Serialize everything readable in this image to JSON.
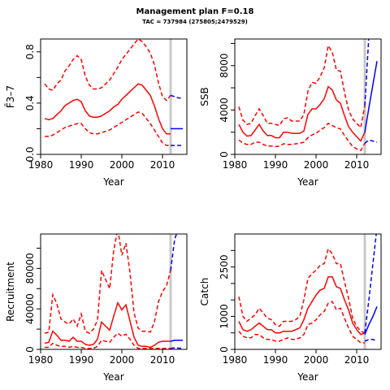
{
  "title": "Management plan F=0.18",
  "subtitle": "TAC = 737984 (275805;2479529)",
  "colors": {
    "historical": "#ff0000",
    "projection": "#0000ff",
    "marker": "#c8c8c8"
  },
  "chart_data": [
    {
      "type": "line",
      "id": "f",
      "ylabel": "F̄3–7",
      "xlabel": "Year",
      "xlim": [
        1980,
        2016
      ],
      "ylim": [
        0,
        0.9
      ],
      "xticks": [
        1980,
        1990,
        2000,
        2010
      ],
      "yticks": [
        0.0,
        0.4,
        0.8
      ],
      "yticks_minor": [
        0.2,
        0.6
      ],
      "marker_year": 2012,
      "history": {
        "x": [
          1981,
          1982,
          1983,
          1984,
          1985,
          1986,
          1987,
          1988,
          1989,
          1990,
          1991,
          1992,
          1993,
          1994,
          1995,
          1996,
          1997,
          1998,
          1999,
          2000,
          2001,
          2002,
          2003,
          2004,
          2005,
          2006,
          2007,
          2008,
          2009,
          2010,
          2011,
          2012
        ],
        "median": [
          0.28,
          0.27,
          0.28,
          0.31,
          0.34,
          0.38,
          0.4,
          0.42,
          0.43,
          0.41,
          0.34,
          0.3,
          0.29,
          0.29,
          0.3,
          0.32,
          0.34,
          0.37,
          0.39,
          0.43,
          0.46,
          0.49,
          0.52,
          0.55,
          0.54,
          0.5,
          0.46,
          0.38,
          0.28,
          0.2,
          0.16,
          0.16
        ],
        "upper": [
          0.55,
          0.51,
          0.5,
          0.55,
          0.58,
          0.65,
          0.69,
          0.74,
          0.77,
          0.74,
          0.61,
          0.54,
          0.51,
          0.51,
          0.52,
          0.55,
          0.58,
          0.63,
          0.68,
          0.74,
          0.78,
          0.82,
          0.86,
          0.9,
          0.88,
          0.84,
          0.79,
          0.7,
          0.56,
          0.45,
          0.42,
          0.46
        ],
        "lower": [
          0.14,
          0.14,
          0.15,
          0.17,
          0.19,
          0.21,
          0.22,
          0.23,
          0.24,
          0.24,
          0.2,
          0.17,
          0.16,
          0.16,
          0.17,
          0.18,
          0.19,
          0.21,
          0.23,
          0.25,
          0.27,
          0.29,
          0.31,
          0.33,
          0.32,
          0.28,
          0.24,
          0.19,
          0.14,
          0.09,
          0.07,
          0.07
        ]
      },
      "projection": {
        "x": [
          2012,
          2013,
          2014,
          2015
        ],
        "median": [
          0.2,
          0.2,
          0.2,
          0.2
        ],
        "upper": [
          0.46,
          0.45,
          0.44,
          0.44
        ],
        "lower": [
          0.07,
          0.07,
          0.07,
          0.07
        ]
      }
    },
    {
      "type": "line",
      "id": "ssb",
      "ylabel": "SSB",
      "xlabel": "Year",
      "xlim": [
        1980,
        2016
      ],
      "ylim": [
        0,
        10400
      ],
      "xticks": [
        1980,
        1990,
        2000,
        2010
      ],
      "yticks": [
        0,
        4000,
        8000
      ],
      "yticks_minor": [
        2000,
        6000,
        10000
      ],
      "marker_year": 2012,
      "history": {
        "x": [
          1981,
          1982,
          1983,
          1984,
          1985,
          1986,
          1987,
          1988,
          1989,
          1990,
          1991,
          1992,
          1993,
          1994,
          1995,
          1996,
          1997,
          1998,
          1999,
          2000,
          2001,
          2002,
          2003,
          2004,
          2005,
          2006,
          2007,
          2008,
          2009,
          2010,
          2011,
          2012
        ],
        "median": [
          2700,
          2000,
          1650,
          1700,
          2200,
          2700,
          2100,
          1700,
          1700,
          1500,
          1500,
          2000,
          2000,
          1900,
          1900,
          1900,
          2100,
          3600,
          4100,
          4100,
          4500,
          5000,
          6100,
          5800,
          4900,
          4600,
          3500,
          2500,
          2000,
          1600,
          1200,
          2000
        ],
        "upper": [
          4300,
          3100,
          2700,
          2800,
          3500,
          4100,
          3500,
          2800,
          2800,
          2700,
          2600,
          3200,
          3300,
          3000,
          3000,
          3000,
          3600,
          5700,
          6500,
          6400,
          7000,
          7800,
          9800,
          9200,
          7600,
          7500,
          5600,
          4000,
          3200,
          2800,
          2400,
          4400
        ],
        "lower": [
          1300,
          1000,
          900,
          900,
          1100,
          1100,
          900,
          750,
          750,
          700,
          750,
          950,
          900,
          900,
          950,
          1000,
          1100,
          1500,
          1750,
          1900,
          2200,
          2400,
          2800,
          2600,
          2400,
          2300,
          1700,
          1200,
          700,
          500,
          350,
          1000
        ]
      },
      "projection": {
        "x": [
          2012,
          2013,
          2014,
          2015
        ],
        "median": [
          2000,
          4200,
          6300,
          8400
        ],
        "upper": [
          4400,
          10700,
          16000,
          20000
        ],
        "lower": [
          1000,
          1300,
          1200,
          1100
        ]
      }
    },
    {
      "type": "line",
      "id": "recruitment",
      "ylabel": "Recruitment",
      "xlabel": "Year",
      "xlim": [
        1980,
        2016
      ],
      "ylim": [
        0,
        114000
      ],
      "xticks": [
        1980,
        1990,
        2000,
        2010
      ],
      "yticks": [
        0,
        40000,
        80000
      ],
      "yticks_minor": [
        20000,
        60000,
        100000
      ],
      "marker_year": 2012,
      "history": {
        "x": [
          1981,
          1982,
          1983,
          1984,
          1985,
          1986,
          1987,
          1988,
          1989,
          1990,
          1991,
          1992,
          1993,
          1994,
          1995,
          1996,
          1997,
          1998,
          1999,
          2000,
          2001,
          2002,
          2003,
          2004,
          2005,
          2006,
          2007,
          2008,
          2009,
          2010,
          2011,
          2012
        ],
        "median": [
          6000,
          7000,
          18000,
          14000,
          9000,
          9000,
          8000,
          12000,
          8000,
          8000,
          5000,
          4000,
          5000,
          10000,
          27000,
          23000,
          19000,
          33000,
          46000,
          39000,
          44000,
          28000,
          12000,
          4000,
          3000,
          3000,
          2000,
          4000,
          7000,
          8000,
          8000,
          8000
        ],
        "upper": [
          16000,
          17000,
          54000,
          45000,
          30000,
          27000,
          25000,
          30000,
          23000,
          35000,
          18000,
          16000,
          20000,
          29000,
          78000,
          69000,
          60000,
          98000,
          119000,
          93000,
          105000,
          76000,
          36000,
          21000,
          18000,
          18000,
          17000,
          27000,
          47000,
          57000,
          63000,
          78000
        ],
        "lower": [
          2000,
          2000,
          6000,
          4000,
          3000,
          3000,
          2000,
          3000,
          2000,
          2000,
          1000,
          1000,
          1000,
          3000,
          9000,
          8000,
          7000,
          12000,
          16000,
          13000,
          15000,
          10000,
          4000,
          1000,
          1000,
          1000,
          1000,
          1000,
          1000,
          1000,
          1000,
          1000
        ]
      },
      "projection": {
        "x": [
          2012,
          2013,
          2014,
          2015
        ],
        "median": [
          8000,
          9000,
          9000,
          9000
        ],
        "upper": [
          78000,
          109000,
          120000,
          130000
        ],
        "lower": [
          1000,
          1500,
          1200,
          1000
        ]
      }
    },
    {
      "type": "line",
      "id": "catch",
      "ylabel": "Catch",
      "xlabel": "Year",
      "xlim": [
        1980,
        2016
      ],
      "ylim": [
        0,
        3500
      ],
      "xticks": [
        1980,
        1990,
        2000,
        2010
      ],
      "yticks": [
        0,
        1000,
        2500
      ],
      "yticks_minor": [
        500,
        1500,
        2000,
        3000
      ],
      "marker_year": 2012,
      "history": {
        "x": [
          1981,
          1982,
          1983,
          1984,
          1985,
          1986,
          1987,
          1988,
          1989,
          1990,
          1991,
          1992,
          1993,
          1994,
          1995,
          1996,
          1997,
          1998,
          1999,
          2000,
          2001,
          2002,
          2003,
          2004,
          2005,
          2006,
          2007,
          2008,
          2009,
          2010,
          2011,
          2012
        ],
        "median": [
          850,
          600,
          550,
          600,
          700,
          800,
          700,
          600,
          600,
          500,
          500,
          550,
          550,
          550,
          600,
          650,
          900,
          1250,
          1450,
          1650,
          1800,
          1850,
          2200,
          2200,
          1900,
          1850,
          1500,
          1200,
          800,
          600,
          450,
          500
        ],
        "upper": [
          1600,
          1000,
          850,
          950,
          1050,
          1250,
          1100,
          950,
          900,
          750,
          700,
          850,
          850,
          850,
          900,
          1000,
          1500,
          2150,
          2300,
          2400,
          2550,
          2600,
          3050,
          2900,
          2600,
          2600,
          2050,
          1550,
          950,
          700,
          550,
          500
        ],
        "lower": [
          550,
          400,
          350,
          350,
          450,
          450,
          350,
          300,
          300,
          250,
          250,
          300,
          350,
          300,
          300,
          350,
          450,
          750,
          800,
          900,
          1050,
          1150,
          1400,
          1450,
          1200,
          1250,
          950,
          650,
          400,
          300,
          200,
          200
        ]
      },
      "projection": {
        "x": [
          2012,
          2013,
          2014,
          2015
        ],
        "median": [
          450,
          750,
          1000,
          1300
        ],
        "upper": [
          500,
          1500,
          2600,
          3700
        ],
        "lower": [
          250,
          300,
          300,
          250
        ]
      }
    }
  ]
}
